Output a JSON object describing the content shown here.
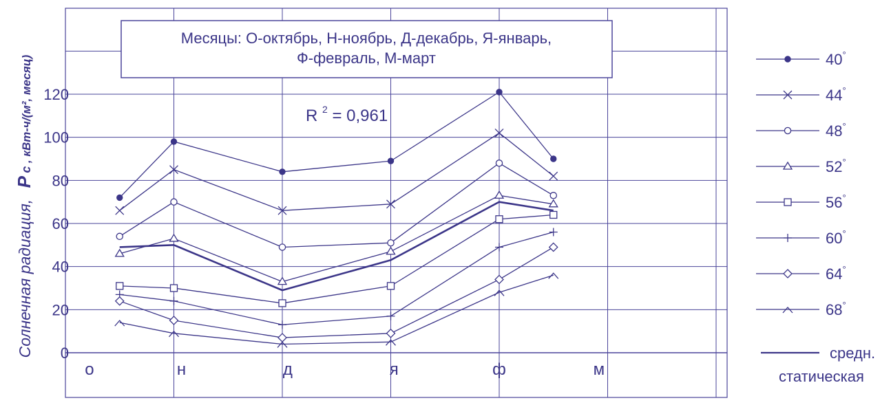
{
  "colors": {
    "ink": "#3b3588",
    "grid": "#4a449a",
    "background": "#ffffff"
  },
  "chart_data": {
    "type": "line",
    "ylabel_symbol": "P",
    "ylabel_subscript": "c",
    "ylabel_units": ", кВт-ч/(м², месяц)",
    "ylabel_text": "Солнечная радиация,",
    "annotation_box": [
      "Месяцы: О-октябрь, Н-ноябрь, Д-декабрь, Я-январь,",
      "Ф-февраль, М-март"
    ],
    "r_squared_prefix": "R",
    "r_squared_sup": "2",
    "r_squared_value": "= 0,961",
    "x_tick_labels": [
      "о",
      "н",
      "д",
      "я",
      "ф",
      "м"
    ],
    "y_ticks": [
      0,
      20,
      40,
      60,
      80,
      100,
      120
    ],
    "ylim": [
      0,
      135
    ],
    "grid": true,
    "legend_position": "right",
    "x": [
      0.5,
      1.0,
      2.0,
      3.0,
      4.0,
      4.5
    ],
    "series": [
      {
        "name": "40",
        "marker": "filled-circle",
        "values": [
          72,
          98,
          84,
          89,
          121,
          90
        ]
      },
      {
        "name": "44",
        "marker": "cross",
        "values": [
          66,
          85,
          66,
          69,
          102,
          82
        ]
      },
      {
        "name": "48",
        "marker": "open-circle",
        "values": [
          54,
          70,
          49,
          51,
          88,
          73
        ]
      },
      {
        "name": "52",
        "marker": "triangle",
        "values": [
          46,
          53,
          33,
          47,
          73,
          69
        ]
      },
      {
        "name": "56",
        "marker": "square",
        "values": [
          31,
          30,
          23,
          31,
          62,
          64
        ]
      },
      {
        "name": "60",
        "marker": "plus",
        "values": [
          27,
          24,
          13,
          17,
          49,
          56
        ]
      },
      {
        "name": "64",
        "marker": "diamond",
        "values": [
          24,
          15,
          7,
          9,
          34,
          49
        ]
      },
      {
        "name": "68",
        "marker": "caret",
        "values": [
          14,
          9,
          4,
          5,
          28,
          36
        ]
      },
      {
        "name": "средн. статическая",
        "marker": "none",
        "values": [
          49,
          50,
          29,
          43,
          70,
          66
        ]
      }
    ],
    "legend_degree": "°",
    "legend_avg_line1": "средн.",
    "legend_avg_line2": "статическая"
  }
}
